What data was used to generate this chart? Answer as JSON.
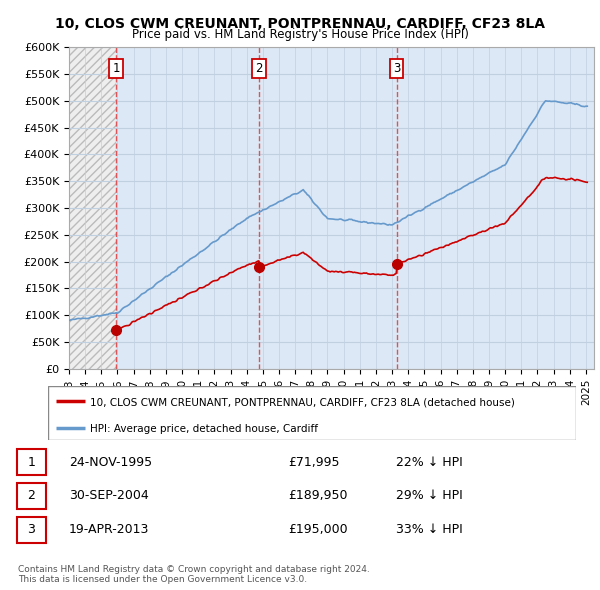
{
  "title": "10, CLOS CWM CREUNANT, PONTPRENNAU, CARDIFF, CF23 8LA",
  "subtitle": "Price paid vs. HM Land Registry's House Price Index (HPI)",
  "ylabel_ticks": [
    "£0",
    "£50K",
    "£100K",
    "£150K",
    "£200K",
    "£250K",
    "£300K",
    "£350K",
    "£400K",
    "£450K",
    "£500K",
    "£550K",
    "£600K"
  ],
  "ytick_values": [
    0,
    50000,
    100000,
    150000,
    200000,
    250000,
    300000,
    350000,
    400000,
    450000,
    500000,
    550000,
    600000
  ],
  "hpi_color": "#6699cc",
  "price_color": "#cc0000",
  "sale_dates": [
    1995.92,
    2004.75,
    2013.29
  ],
  "sale_prices": [
    71995,
    189950,
    195000
  ],
  "sale_labels": [
    "1",
    "2",
    "3"
  ],
  "legend_entries": [
    "10, CLOS CWM CREUNANT, PONTPRENNAU, CARDIFF, CF23 8LA (detached house)",
    "HPI: Average price, detached house, Cardiff"
  ],
  "table_rows": [
    {
      "num": "1",
      "date": "24-NOV-1995",
      "price": "£71,995",
      "hpi": "22% ↓ HPI"
    },
    {
      "num": "2",
      "date": "30-SEP-2004",
      "price": "£189,950",
      "hpi": "29% ↓ HPI"
    },
    {
      "num": "3",
      "date": "19-APR-2013",
      "price": "£195,000",
      "hpi": "33% ↓ HPI"
    }
  ],
  "footnote": "Contains HM Land Registry data © Crown copyright and database right 2024.\nThis data is licensed under the Open Government Licence v3.0.",
  "xmin": 1993,
  "xmax": 2025.5,
  "ymin": 0,
  "ymax": 600000,
  "hatch_bg": "#e8e8e8",
  "light_bg": "#dce8f5",
  "grid_color": "#c0d0e0"
}
